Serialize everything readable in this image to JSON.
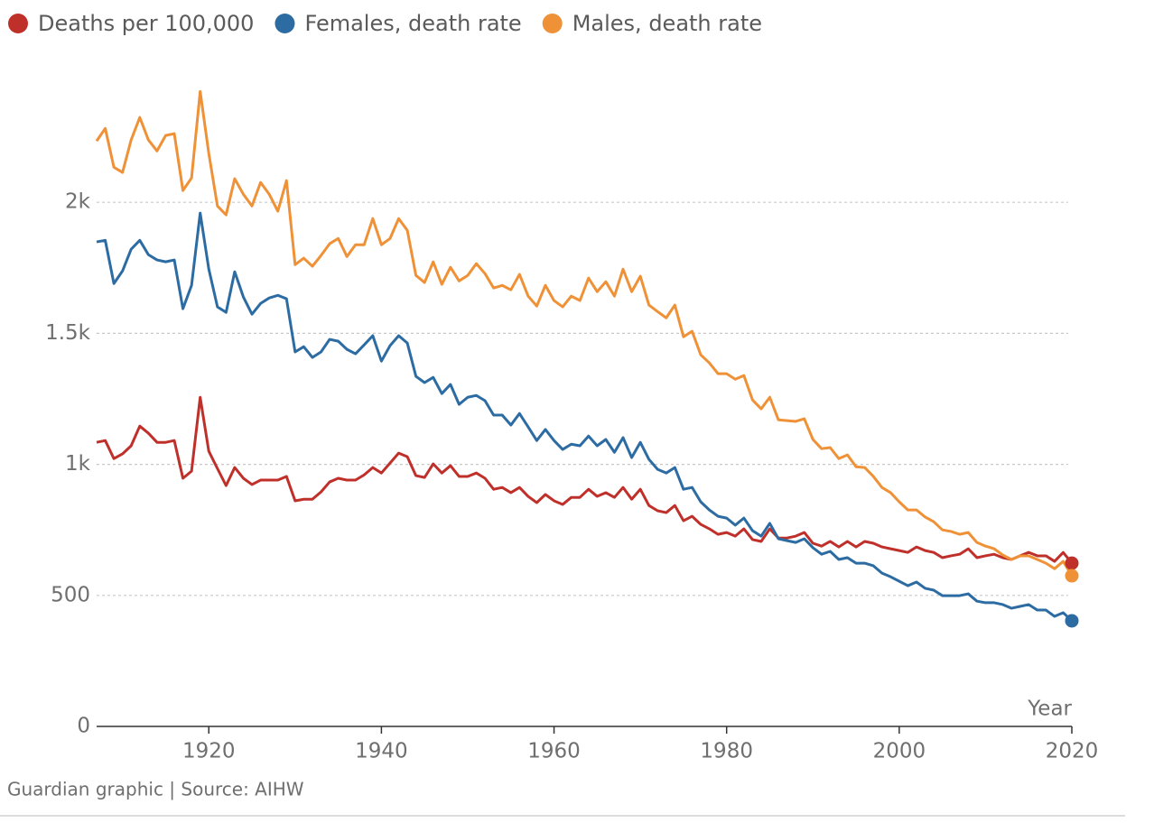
{
  "chart_data": {
    "type": "line",
    "x_label": "Year",
    "source": "Guardian graphic | Source: AIHW",
    "x": [
      1907,
      1908,
      1909,
      1910,
      1911,
      1912,
      1913,
      1914,
      1915,
      1916,
      1917,
      1918,
      1919,
      1920,
      1921,
      1922,
      1923,
      1924,
      1925,
      1926,
      1927,
      1928,
      1929,
      1930,
      1931,
      1932,
      1933,
      1934,
      1935,
      1936,
      1937,
      1938,
      1939,
      1940,
      1941,
      1942,
      1943,
      1944,
      1945,
      1946,
      1947,
      1948,
      1949,
      1950,
      1951,
      1952,
      1953,
      1954,
      1955,
      1956,
      1957,
      1958,
      1959,
      1960,
      1961,
      1962,
      1963,
      1964,
      1965,
      1966,
      1967,
      1968,
      1969,
      1970,
      1971,
      1972,
      1973,
      1974,
      1975,
      1976,
      1977,
      1978,
      1979,
      1980,
      1981,
      1982,
      1983,
      1984,
      1985,
      1986,
      1987,
      1988,
      1989,
      1990,
      1991,
      1992,
      1993,
      1994,
      1995,
      1996,
      1997,
      1998,
      1999,
      2000,
      2001,
      2002,
      2003,
      2004,
      2005,
      2006,
      2007,
      2008,
      2009,
      2010,
      2011,
      2012,
      2013,
      2014,
      2015,
      2016,
      2017,
      2018,
      2019,
      2020
    ],
    "series": [
      {
        "name": "Deaths per 100,000",
        "color": "#c0302a",
        "values": [
          1084,
          1091,
          1022,
          1040,
          1071,
          1146,
          1119,
          1084,
          1084,
          1091,
          947,
          974,
          1256,
          1050,
          984,
          919,
          988,
          947,
          923,
          940,
          940,
          940,
          954,
          861,
          867,
          867,
          895,
          933,
          947,
          940,
          940,
          960,
          988,
          967,
          1005,
          1043,
          1029,
          957,
          950,
          1002,
          967,
          995,
          954,
          954,
          967,
          947,
          905,
          912,
          892,
          912,
          878,
          854,
          885,
          861,
          847,
          874,
          874,
          905,
          878,
          892,
          874,
          912,
          867,
          905,
          843,
          823,
          816,
          843,
          785,
          802,
          771,
          754,
          733,
          740,
          726,
          754,
          713,
          706,
          754,
          719,
          719,
          726,
          740,
          699,
          688,
          706,
          685,
          706,
          685,
          706,
          699,
          685,
          678,
          671,
          664,
          685,
          671,
          664,
          644,
          651,
          657,
          678,
          644,
          651,
          657,
          644,
          637,
          651,
          664,
          651,
          651,
          630,
          664,
          623
        ]
      },
      {
        "name": "Females, death rate",
        "color": "#2c6ca3",
        "values": [
          1849,
          1855,
          1690,
          1738,
          1821,
          1855,
          1800,
          1780,
          1773,
          1780,
          1594,
          1683,
          1959,
          1745,
          1601,
          1580,
          1735,
          1639,
          1573,
          1614,
          1635,
          1645,
          1632,
          1429,
          1449,
          1408,
          1429,
          1477,
          1470,
          1439,
          1422,
          1456,
          1491,
          1394,
          1453,
          1491,
          1463,
          1336,
          1312,
          1332,
          1270,
          1305,
          1229,
          1256,
          1263,
          1243,
          1188,
          1188,
          1150,
          1194,
          1143,
          1091,
          1133,
          1091,
          1057,
          1077,
          1071,
          1108,
          1071,
          1095,
          1046,
          1102,
          1026,
          1084,
          1019,
          981,
          967,
          988,
          905,
          912,
          857,
          826,
          802,
          795,
          768,
          795,
          747,
          726,
          775,
          716,
          709,
          702,
          716,
          682,
          657,
          668,
          637,
          644,
          623,
          623,
          613,
          585,
          571,
          554,
          537,
          551,
          527,
          520,
          499,
          499,
          499,
          506,
          478,
          472,
          472,
          465,
          451,
          458,
          465,
          444,
          444,
          420,
          434,
          403
        ]
      },
      {
        "name": "Males, death rate",
        "color": "#ef9137",
        "values": [
          2234,
          2282,
          2134,
          2114,
          2238,
          2324,
          2238,
          2196,
          2255,
          2262,
          2045,
          2093,
          2423,
          2186,
          1986,
          1952,
          2090,
          2031,
          1986,
          2076,
          2031,
          1966,
          2083,
          1762,
          1787,
          1756,
          1797,
          1842,
          1862,
          1793,
          1838,
          1838,
          1938,
          1838,
          1862,
          1938,
          1893,
          1721,
          1694,
          1773,
          1687,
          1752,
          1700,
          1721,
          1766,
          1728,
          1673,
          1683,
          1666,
          1725,
          1642,
          1604,
          1683,
          1625,
          1601,
          1642,
          1625,
          1711,
          1659,
          1697,
          1642,
          1745,
          1659,
          1718,
          1608,
          1583,
          1559,
          1608,
          1487,
          1508,
          1418,
          1387,
          1346,
          1346,
          1325,
          1339,
          1246,
          1212,
          1256,
          1170,
          1167,
          1164,
          1174,
          1095,
          1060,
          1064,
          1022,
          1036,
          991,
          988,
          954,
          912,
          892,
          857,
          826,
          826,
          799,
          781,
          750,
          744,
          733,
          740,
          702,
          688,
          678,
          654,
          637,
          651,
          651,
          637,
          623,
          602,
          630,
          575
        ]
      }
    ],
    "xlim": [
      1907,
      2020
    ],
    "xticks": [
      1920,
      1940,
      1960,
      1980,
      2000,
      2020
    ],
    "ylim": [
      0,
      2500
    ],
    "yticks": [
      0,
      500,
      {
        "value": 1000,
        "label": "1k"
      },
      {
        "value": 1500,
        "label": "1.5k"
      },
      {
        "value": 2000,
        "label": "2k"
      }
    ],
    "grid": true
  }
}
